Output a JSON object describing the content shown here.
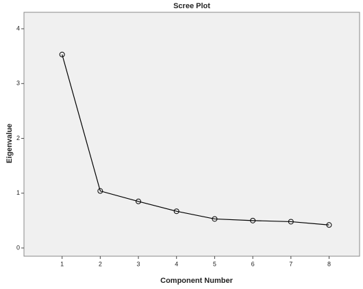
{
  "chart_data": {
    "type": "line",
    "title": "Scree Plot",
    "x_label": "Component Number",
    "y_label": "Eigenvalue",
    "x": [
      1,
      2,
      3,
      4,
      5,
      6,
      7,
      8
    ],
    "series": [
      {
        "name": "Eigenvalue",
        "color": "#000000",
        "values": [
          3.53,
          1.04,
          0.85,
          0.67,
          0.53,
          0.5,
          0.48,
          0.42
        ]
      }
    ],
    "xlim": [
      0,
      8.8
    ],
    "xticks": [
      1,
      2,
      3,
      4,
      5,
      6,
      7,
      8
    ],
    "ylim": [
      -0.15,
      4.3
    ],
    "yticks": [
      0,
      1,
      2,
      3,
      4
    ]
  }
}
